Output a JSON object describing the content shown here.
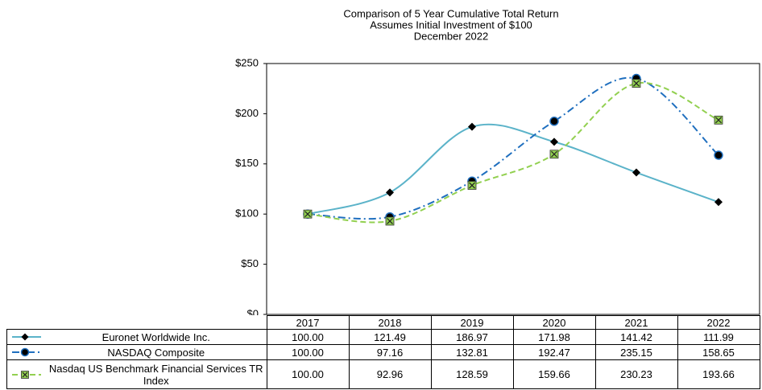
{
  "chart_data": {
    "type": "line",
    "title": "Comparison of 5 Year Cumulative Total Return",
    "subtitle": "Assumes Initial Investment of $100",
    "date_label": "December 2022",
    "categories": [
      "2017",
      "2018",
      "2019",
      "2020",
      "2021",
      "2022"
    ],
    "series": [
      {
        "name": "Euronet Worldwide Inc.",
        "color": "#5bb3c9",
        "marker": "diamond",
        "dash": "solid",
        "values": [
          100.0,
          121.49,
          186.97,
          171.98,
          141.42,
          111.99
        ],
        "value_labels": [
          "100.00",
          "121.49",
          "186.97",
          "171.98",
          "141.42",
          "111.99"
        ]
      },
      {
        "name": "NASDAQ Composite",
        "color": "#1f6fbf",
        "marker": "circle",
        "dash": "dashdot",
        "values": [
          100.0,
          97.16,
          132.81,
          192.47,
          235.15,
          158.65
        ],
        "value_labels": [
          "100.00",
          "97.16",
          "132.81",
          "192.47",
          "235.15",
          "158.65"
        ]
      },
      {
        "name": "Nasdaq US Benchmark Financial Services TR Index",
        "color": "#92d050",
        "marker": "square-x",
        "dash": "dashed",
        "values": [
          100.0,
          92.96,
          128.59,
          159.66,
          230.23,
          193.66
        ],
        "value_labels": [
          "100.00",
          "92.96",
          "128.59",
          "159.66",
          "230.23",
          "193.66"
        ]
      }
    ],
    "ylim": [
      0,
      250
    ],
    "yticks": [
      {
        "value": 0,
        "label": "$0"
      },
      {
        "value": 50,
        "label": "$50"
      },
      {
        "value": 100,
        "label": "$100"
      },
      {
        "value": 150,
        "label": "$150"
      },
      {
        "value": 200,
        "label": "$200"
      },
      {
        "value": 250,
        "label": "$250"
      }
    ],
    "grid": false
  }
}
